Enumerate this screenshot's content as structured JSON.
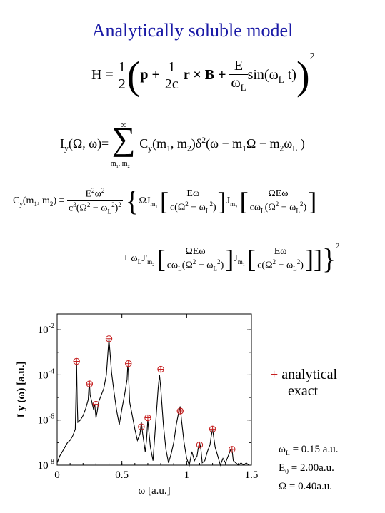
{
  "slide": {
    "title": "Analytically soluble model"
  },
  "equations": {
    "hamiltonian": {
      "lhs": "H =",
      "prefactor_num": "1",
      "prefactor_den": "2",
      "p": "p +",
      "cross_num": "1",
      "cross_den": "2c",
      "cross_term": "r × B +",
      "field_num": "E",
      "field_den": "ω",
      "field_den_sub": "L",
      "sin_term": "sin(ω",
      "sin_sub": "L",
      "sin_tail": " t)",
      "power": "2"
    },
    "spectrum": {
      "lhs": "I",
      "lhs_sub": "y",
      "lhs_args": "(Ω, ω)=",
      "sum_top": "∞",
      "sum_bottom": "m",
      "sum_sub1": "1",
      "sum_comma": ", m",
      "sum_sub2": "2",
      "term": "C",
      "term_sub": "y",
      "term_args": "(m",
      "arg1_sub": "1",
      "arg_mid": ", m",
      "arg2_sub": "2",
      "delta_part": ")δ",
      "delta_sup": "2",
      "delta_args": "(ω − m",
      "d1_sub": "1",
      "d_mid": "Ω − m",
      "d2_sub": "2",
      "d_tail": "ω",
      "d_tail_sub": "L",
      "d_close": " )"
    },
    "coefficient": {
      "lhs": "C",
      "lhs_sub": "y",
      "lhs_args": "(m",
      "l1_sub": "1",
      "l_mid": ", m",
      "l2_sub": "2",
      "l_close": ") ≡",
      "pre_num": "E",
      "pre_num_sup": "2",
      "pre_num_tail": "ω",
      "pre_num_tail_sup": "2",
      "pre_den": "c",
      "pre_den_sup": "3",
      "pre_den_mid": "(Ω",
      "pre_den_sup2": "2",
      "pre_den_minus": " − ω",
      "pre_den_sub3": "L",
      "pre_den_sup3": "2",
      "pre_den_close": ")",
      "pre_den_sup4": "2",
      "bessel1": "ΩJ",
      "bessel1_sub": "m",
      "bessel1_subsub": "1",
      "arg_a_num": "Eω",
      "arg_a_den": "c(Ω",
      "arg_a_den_sup": "2",
      "arg_a_den_tail": " − ω",
      "arg_a_den_sub": "L",
      "arg_a_den_sup2": "2",
      "arg_a_den_close": ")",
      "bessel2": "J",
      "bessel2_sub": "m",
      "bessel2_subsub": "2",
      "arg_b_num": "ΩEω",
      "arg_b_den": "cω",
      "arg_b_den_sub": "L",
      "arg_b_den_mid": "(Ω",
      "arg_b_den_sup": "2",
      "arg_b_den_tail": " − ω",
      "arg_b_den_sub2": "L",
      "arg_b_den_sup2": "2",
      "arg_b_den_close": ")",
      "second_prefix": "+ ω",
      "second_prefix_sub": "L",
      "second_bessel": "J'",
      "second_bessel_sub": "m",
      "second_bessel_subsub": "2",
      "arg_c_num": "ΩEω",
      "arg_c_den": "cω",
      "arg_c_den_sub": "L",
      "arg_c_den_mid": "(Ω",
      "arg_c_den_sup": "2",
      "arg_c_den_tail": " − ω",
      "arg_c_den_sub2": "L",
      "arg_c_den_sup2": "2",
      "arg_c_den_close": ")",
      "third_bessel": "J",
      "third_bessel_sub": "m",
      "third_bessel_subsub": "1",
      "arg_d_num": "Eω",
      "arg_d_den": "c(Ω",
      "arg_d_den_sup": "2",
      "arg_d_den_tail": " − ω",
      "arg_d_den_sub": "L",
      "arg_d_den_sup2": "2",
      "arg_d_den_close": ")",
      "power": "2"
    }
  },
  "legend": {
    "analytical_marker": "+",
    "analytical_label": " analytical",
    "exact_marker": "—",
    "exact_label": " exact"
  },
  "parameters": [
    {
      "sym": "ω",
      "sub": "L",
      "text": " = 0.15 a.u."
    },
    {
      "sym": "E",
      "sub": "0",
      "text": " = 2.00a.u."
    },
    {
      "sym": "Ω",
      "sub": "",
      "text": "  = 0.40a.u."
    }
  ],
  "chart_data": {
    "type": "line",
    "xlabel": "ω [a.u.]",
    "ylabel": "I y (ω) [a.u.]",
    "xlim": [
      0,
      1.5
    ],
    "ylim_log10": [
      -8,
      -1.3
    ],
    "y_scale": "log",
    "x_ticks": [
      {
        "v": 0,
        "label": "0"
      },
      {
        "v": 0.5,
        "label": "0.5"
      },
      {
        "v": 1,
        "label": "1"
      },
      {
        "v": 1.5,
        "label": "1.5"
      }
    ],
    "y_ticks": [
      {
        "exp": -2,
        "base": "10",
        "sup": "-2"
      },
      {
        "exp": -4,
        "base": "10",
        "sup": "-4"
      },
      {
        "exp": -6,
        "base": "10",
        "sup": "-6"
      },
      {
        "exp": -8,
        "base": "10",
        "sup": "-8"
      }
    ],
    "exact_series": {
      "name": "exact",
      "color": "#000000",
      "x": [
        0.0,
        0.02,
        0.04,
        0.06,
        0.08,
        0.1,
        0.12,
        0.14,
        0.145,
        0.15,
        0.155,
        0.16,
        0.18,
        0.2,
        0.22,
        0.24,
        0.245,
        0.25,
        0.255,
        0.26,
        0.28,
        0.29,
        0.3,
        0.31,
        0.32,
        0.34,
        0.36,
        0.38,
        0.39,
        0.4,
        0.41,
        0.42,
        0.44,
        0.46,
        0.48,
        0.5,
        0.52,
        0.54,
        0.545,
        0.55,
        0.555,
        0.56,
        0.58,
        0.6,
        0.62,
        0.64,
        0.65,
        0.66,
        0.68,
        0.69,
        0.7,
        0.71,
        0.72,
        0.74,
        0.76,
        0.78,
        0.79,
        0.8,
        0.81,
        0.82,
        0.84,
        0.86,
        0.88,
        0.9,
        0.92,
        0.94,
        0.95,
        0.96,
        0.98,
        1.0,
        1.02,
        1.04,
        1.06,
        1.08,
        1.09,
        1.1,
        1.11,
        1.12,
        1.14,
        1.16,
        1.18,
        1.19,
        1.2,
        1.21,
        1.22,
        1.24,
        1.26,
        1.28,
        1.3,
        1.32,
        1.34,
        1.35,
        1.36,
        1.38,
        1.4,
        1.42,
        1.44,
        1.46,
        1.48,
        1.5
      ],
      "log10_y": [
        -7.9,
        -7.6,
        -7.4,
        -7.2,
        -7.0,
        -6.9,
        -6.7,
        -6.4,
        -5.0,
        -3.4,
        -5.2,
        -6.1,
        -6.0,
        -5.8,
        -5.5,
        -5.1,
        -4.6,
        -4.4,
        -4.9,
        -5.0,
        -5.5,
        -5.3,
        -5.9,
        -5.6,
        -5.2,
        -4.9,
        -4.6,
        -4.0,
        -3.2,
        -2.4,
        -3.1,
        -3.9,
        -4.8,
        -5.6,
        -6.2,
        -5.5,
        -4.9,
        -4.2,
        -3.6,
        -3.8,
        -4.5,
        -5.2,
        -5.8,
        -6.4,
        -6.9,
        -6.6,
        -6.1,
        -6.6,
        -7.4,
        -6.9,
        -6.0,
        -6.6,
        -7.2,
        -7.8,
        -6.2,
        -4.6,
        -4.0,
        -4.6,
        -5.4,
        -6.2,
        -7.3,
        -7.9,
        -7.5,
        -7.0,
        -6.2,
        -5.6,
        -5.4,
        -6.0,
        -7.0,
        -7.7,
        -8.0,
        -7.4,
        -7.8,
        -7.6,
        -7.2,
        -7.0,
        -7.3,
        -7.9,
        -7.8,
        -7.4,
        -7.1,
        -6.7,
        -6.4,
        -6.8,
        -7.2,
        -7.6,
        -8.0,
        -7.7,
        -7.9,
        -7.6,
        -7.3,
        -7.3,
        -7.8,
        -7.9,
        -8.0,
        -7.9,
        -8.0,
        -7.9,
        -8.0,
        -8.0
      ]
    },
    "analytical_points": {
      "name": "analytical",
      "color": "#c62020",
      "x": [
        0.15,
        0.25,
        0.3,
        0.4,
        0.55,
        0.65,
        0.7,
        0.8,
        0.95,
        1.1,
        1.2,
        1.35
      ],
      "log10_y": [
        -3.4,
        -4.4,
        -5.3,
        -2.4,
        -3.5,
        -6.3,
        -5.9,
        -3.75,
        -5.6,
        -7.1,
        -6.4,
        -7.3
      ]
    }
  }
}
